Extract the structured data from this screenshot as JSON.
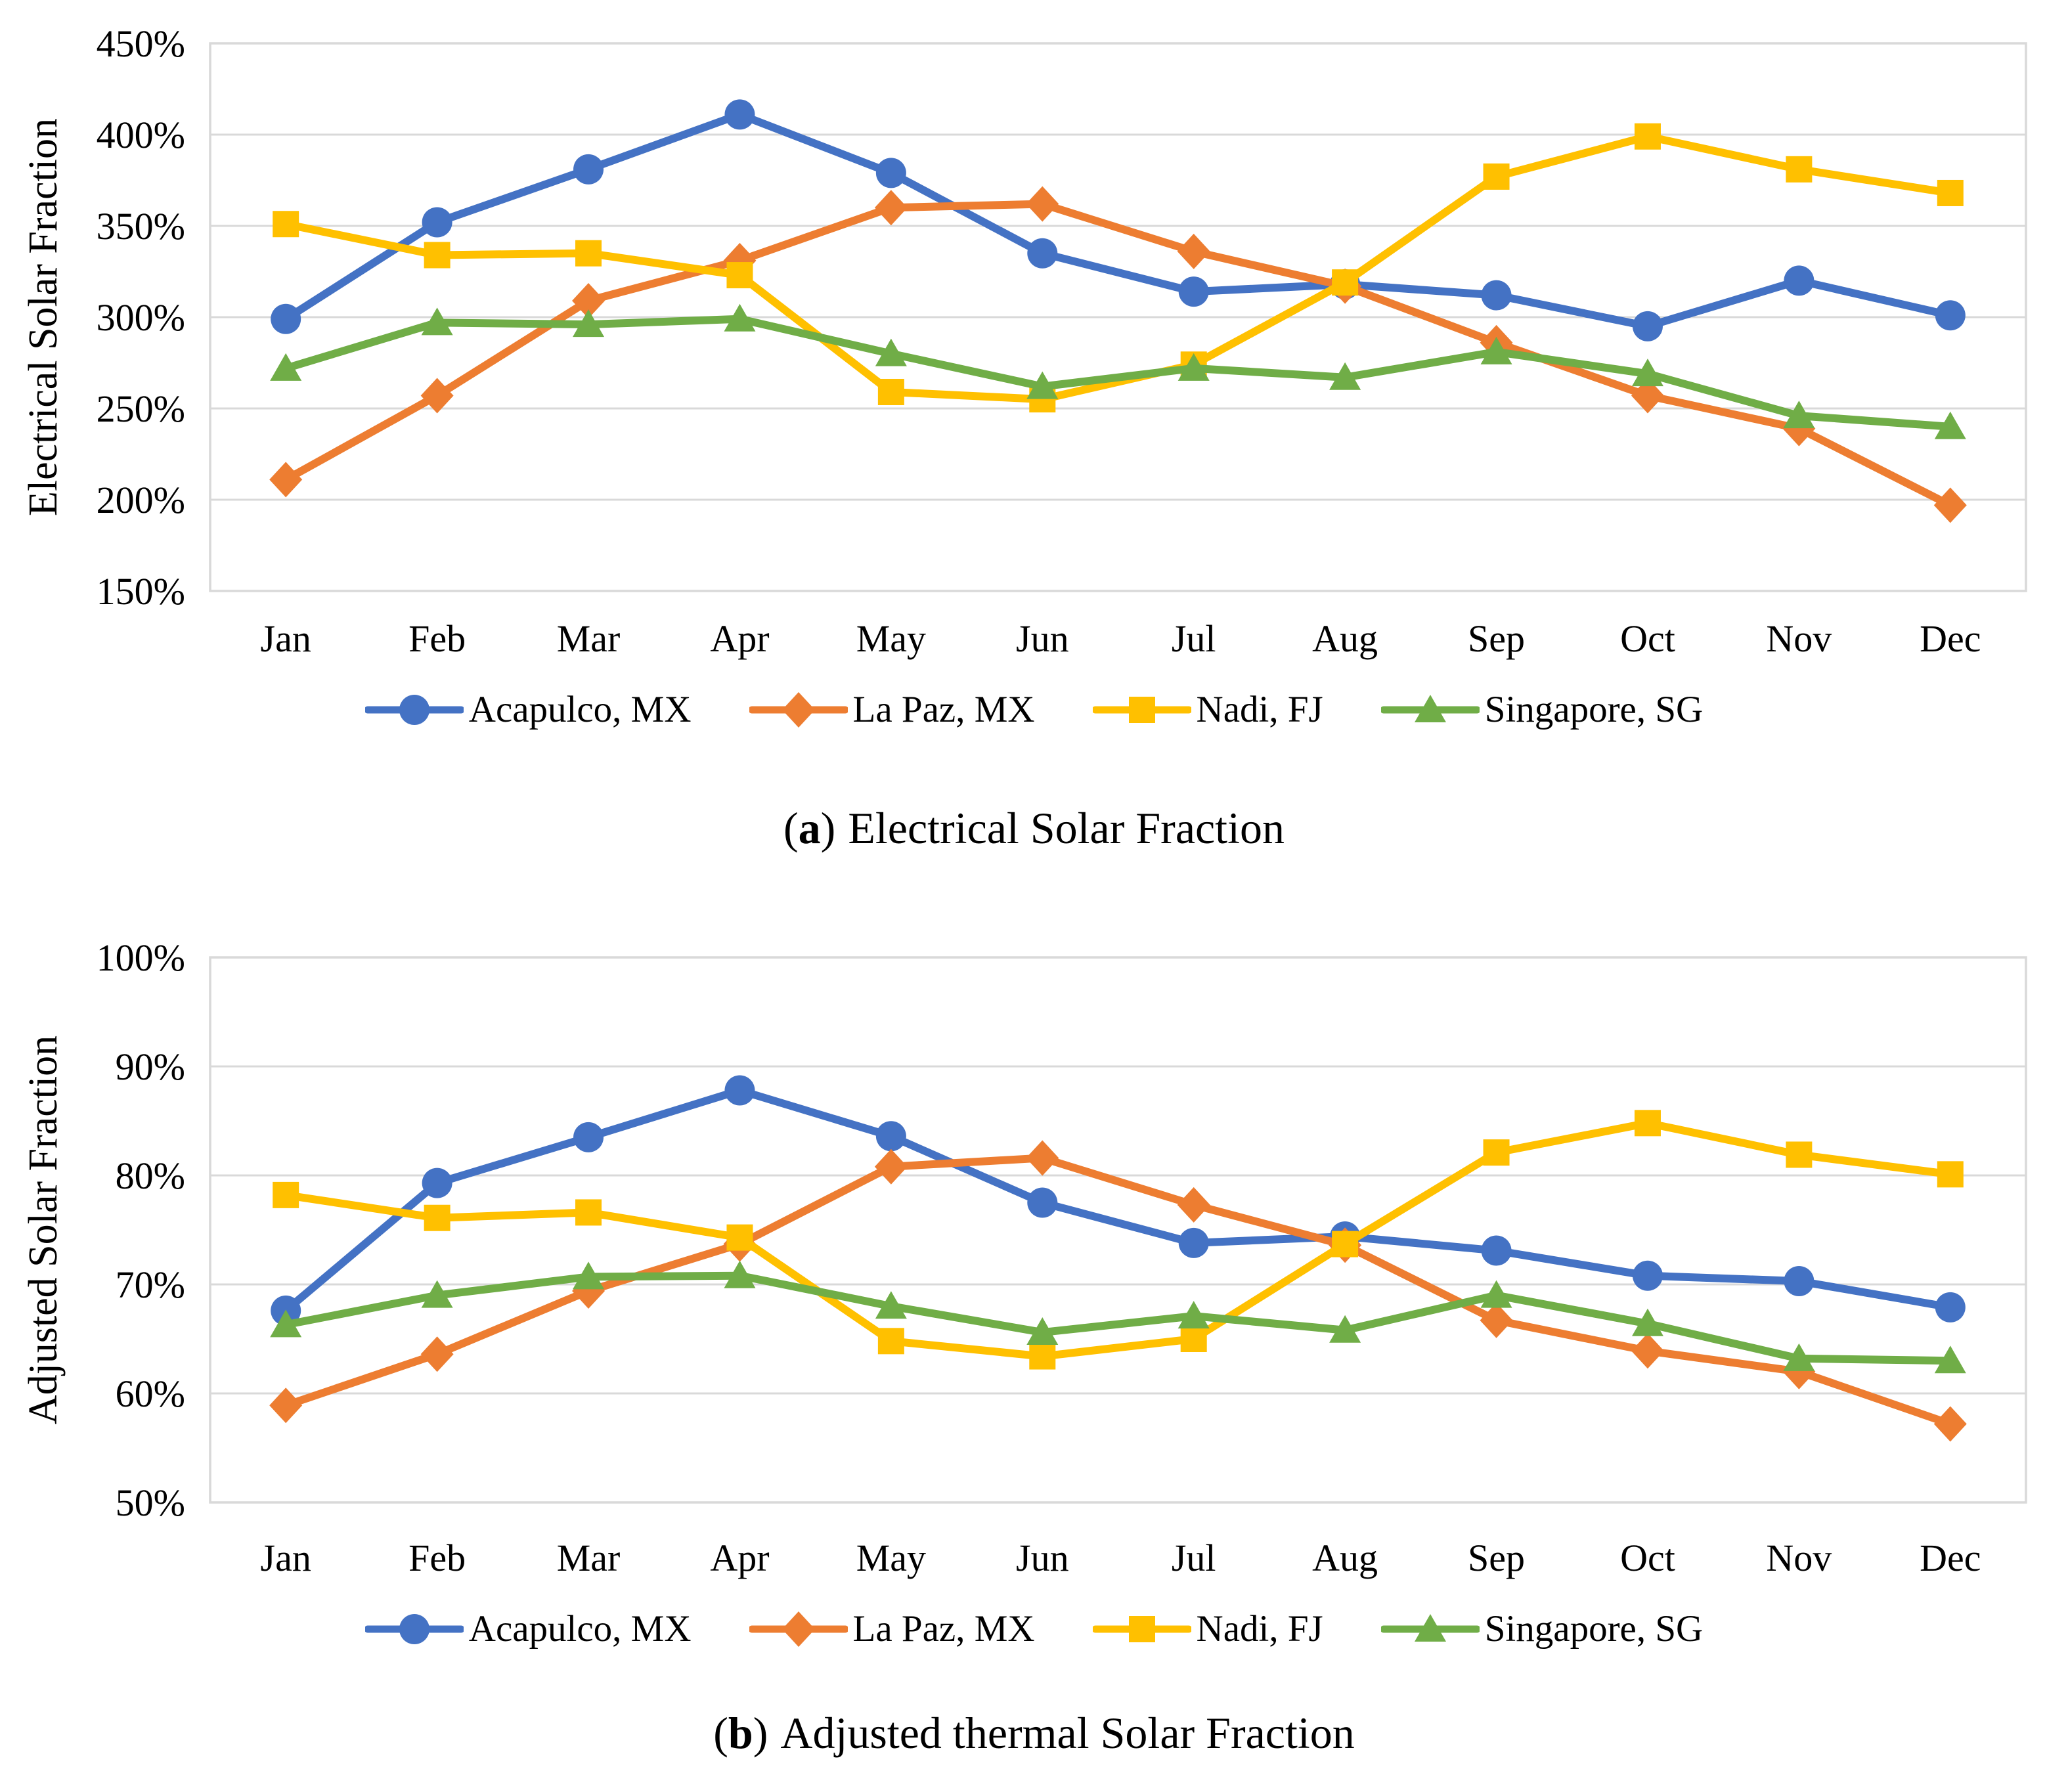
{
  "colors": {
    "acapulco": "#4472C4",
    "lapaz": "#ED7D31",
    "nadi": "#FFC000",
    "singapore": "#70AD47",
    "gridline": "#D9D9D9",
    "text": "#000000",
    "background": "#FFFFFF"
  },
  "chart_data": [
    {
      "id": "a",
      "type": "line",
      "caption": {
        "open": "(",
        "letter": "a",
        "close": ")",
        "text": "Electrical Solar Fraction"
      },
      "ylabel": "Electrical Solar Fraction",
      "categories": [
        "Jan",
        "Feb",
        "Mar",
        "Apr",
        "May",
        "Jun",
        "Jul",
        "Aug",
        "Sep",
        "Oct",
        "Nov",
        "Dec"
      ],
      "y_axis": {
        "min": 150,
        "max": 450,
        "step": 50,
        "unit": "percent",
        "tick_labels": [
          "450%",
          "400%",
          "350%",
          "300%",
          "250%",
          "200%",
          "150%"
        ]
      },
      "grid": true,
      "legend_position": "bottom",
      "series": [
        {
          "name": "Acapulco, MX",
          "marker": "circle",
          "color": "#4472C4",
          "values": [
            299,
            352,
            381,
            411,
            379,
            335,
            314,
            318,
            312,
            295,
            320,
            301
          ]
        },
        {
          "name": "La Paz, MX",
          "marker": "diamond",
          "color": "#ED7D31",
          "values": [
            211,
            257,
            309,
            331,
            360,
            362,
            336,
            317,
            286,
            257,
            239,
            197
          ]
        },
        {
          "name": "Nadi, FJ",
          "marker": "square",
          "color": "#FFC000",
          "values": [
            351,
            334,
            335,
            323,
            259,
            255,
            274,
            319,
            377,
            399,
            381,
            368
          ]
        },
        {
          "name": "Singapore, SG",
          "marker": "triangle",
          "color": "#70AD47",
          "values": [
            272,
            297,
            296,
            299,
            280,
            262,
            272,
            267,
            281,
            269,
            246,
            240
          ]
        }
      ]
    },
    {
      "id": "b",
      "type": "line",
      "caption": {
        "open": "(",
        "letter": "b",
        "close": ")",
        "text": "Adjusted thermal Solar Fraction"
      },
      "ylabel": "Adjusted Solar Fraction",
      "categories": [
        "Jan",
        "Feb",
        "Mar",
        "Apr",
        "May",
        "Jun",
        "Jul",
        "Aug",
        "Sep",
        "Oct",
        "Nov",
        "Dec"
      ],
      "y_axis": {
        "min": 50,
        "max": 100,
        "step": 10,
        "unit": "percent",
        "tick_labels": [
          "100%",
          "90%",
          "80%",
          "70%",
          "60%",
          "50%"
        ]
      },
      "grid": true,
      "legend_position": "bottom",
      "series": [
        {
          "name": "Acapulco, MX",
          "marker": "circle",
          "color": "#4472C4",
          "values": [
            67.6,
            79.3,
            83.5,
            87.8,
            83.6,
            77.5,
            73.8,
            74.4,
            73.1,
            70.8,
            70.3,
            67.9
          ]
        },
        {
          "name": "La Paz, MX",
          "marker": "diamond",
          "color": "#ED7D31",
          "values": [
            58.9,
            63.6,
            69.4,
            73.7,
            80.8,
            81.6,
            77.3,
            73.6,
            66.7,
            63.9,
            62.0,
            57.2
          ]
        },
        {
          "name": "Nadi, FJ",
          "marker": "square",
          "color": "#FFC000",
          "values": [
            78.2,
            76.1,
            76.6,
            74.3,
            64.8,
            63.4,
            65.0,
            73.7,
            82.1,
            84.8,
            81.9,
            80.1
          ]
        },
        {
          "name": "Singapore, SG",
          "marker": "triangle",
          "color": "#70AD47",
          "values": [
            66.3,
            69.0,
            70.7,
            70.8,
            68.0,
            65.6,
            67.1,
            65.8,
            69.0,
            66.4,
            63.2,
            63.0
          ]
        }
      ]
    }
  ]
}
